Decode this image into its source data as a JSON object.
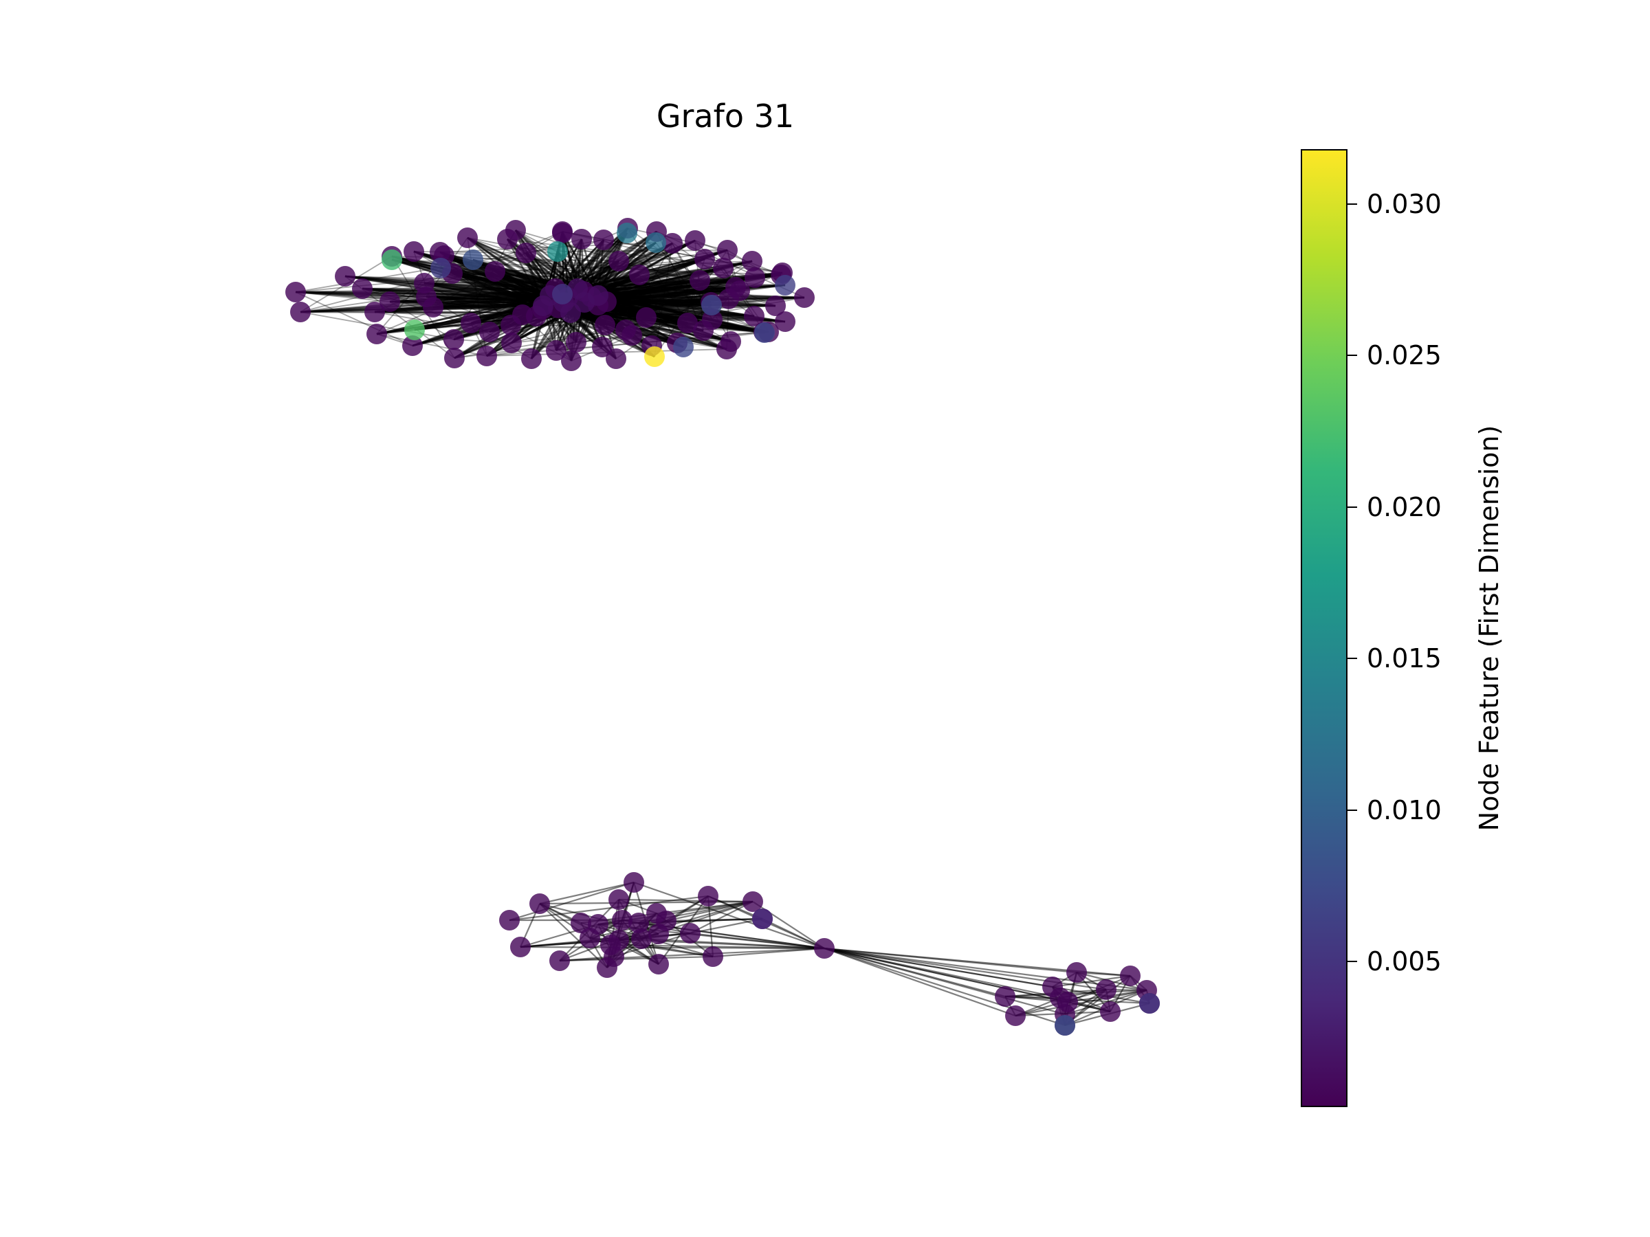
{
  "title": "Grafo 31",
  "colorbar": {
    "label": "Node Feature (First Dimension)",
    "min": 0.0,
    "max": 0.0318,
    "ticks": [
      "0.005",
      "0.010",
      "0.015",
      "0.020",
      "0.025",
      "0.030"
    ],
    "colormap": [
      "#440154",
      "#482878",
      "#3e4989",
      "#31688e",
      "#26828e",
      "#1f9e89",
      "#35b779",
      "#6ece58",
      "#b5de2b",
      "#fde725"
    ]
  },
  "chart_data": {
    "type": "network",
    "title": "Grafo 31",
    "value_label": "Node Feature (First Dimension)",
    "value_range": [
      0.0,
      0.0318
    ],
    "components": [
      {
        "name": "upper-cluster",
        "approx_nodes": 90,
        "max_feature": 0.0318,
        "notable_values": [
          0.0318,
          0.023,
          0.022,
          0.016,
          0.013,
          0.012,
          0.008,
          0.007,
          0.006
        ]
      },
      {
        "name": "lower-left-cluster",
        "approx_nodes": 26,
        "notable_values": [
          0.004
        ]
      },
      {
        "name": "lower-right-cluster",
        "approx_nodes": 14,
        "notable_values": [
          0.008,
          0.005
        ]
      },
      {
        "name": "bridge-node",
        "approx_nodes": 1,
        "connects": [
          "lower-left-cluster",
          "lower-right-cluster"
        ]
      }
    ]
  }
}
